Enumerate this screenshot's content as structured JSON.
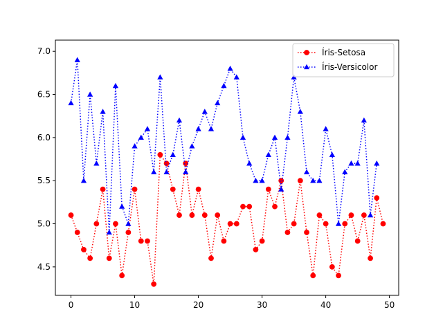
{
  "chart_data": {
    "type": "line",
    "title": "",
    "xlabel": "",
    "ylabel": "",
    "xlim": [
      -2.45,
      51.45
    ],
    "ylim": [
      4.17,
      7.13
    ],
    "xticks": [
      0,
      10,
      20,
      30,
      40,
      50
    ],
    "yticks": [
      4.5,
      5.0,
      5.5,
      6.0,
      6.5,
      7.0
    ],
    "xtick_labels": [
      "0",
      "10",
      "20",
      "30",
      "40",
      "50"
    ],
    "ytick_labels": [
      "4.5",
      "5.0",
      "5.5",
      "6.0",
      "6.5",
      "7.0"
    ],
    "grid": false,
    "legend_position": "upper right",
    "series": [
      {
        "name": "Íris-Setosa",
        "color": "#ff0000",
        "marker": "circle",
        "linestyle": "dotted",
        "x": [
          0,
          1,
          2,
          3,
          4,
          5,
          6,
          7,
          8,
          9,
          10,
          11,
          12,
          13,
          14,
          15,
          16,
          17,
          18,
          19,
          20,
          21,
          22,
          23,
          24,
          25,
          26,
          27,
          28,
          29,
          30,
          31,
          32,
          33,
          34,
          35,
          36,
          37,
          38,
          39,
          40,
          41,
          42,
          43,
          44,
          45,
          46,
          47,
          48,
          49
        ],
        "values": [
          5.1,
          4.9,
          4.7,
          4.6,
          5.0,
          5.4,
          4.6,
          5.0,
          4.4,
          4.9,
          5.4,
          4.8,
          4.8,
          4.3,
          5.8,
          5.7,
          5.4,
          5.1,
          5.7,
          5.1,
          5.4,
          5.1,
          4.6,
          5.1,
          4.8,
          5.0,
          5.0,
          5.2,
          5.2,
          4.7,
          4.8,
          5.4,
          5.2,
          5.5,
          4.9,
          5.0,
          5.5,
          4.9,
          4.4,
          5.1,
          5.0,
          4.5,
          4.4,
          5.0,
          5.1,
          4.8,
          5.1,
          4.6,
          5.3,
          5.0
        ]
      },
      {
        "name": "Íris-Versicolor",
        "color": "#0000ff",
        "marker": "triangle",
        "linestyle": "dotted",
        "x": [
          0,
          1,
          2,
          3,
          4,
          5,
          6,
          7,
          8,
          9,
          10,
          11,
          12,
          13,
          14,
          15,
          16,
          17,
          18,
          19,
          20,
          21,
          22,
          23,
          24,
          25,
          26,
          27,
          28,
          29,
          30,
          31,
          32,
          33,
          34,
          35,
          36,
          37,
          38,
          39,
          40,
          41,
          42,
          43,
          44,
          45,
          46,
          47,
          48
        ],
        "values": [
          6.4,
          6.9,
          5.5,
          6.5,
          5.7,
          6.3,
          4.9,
          6.6,
          5.2,
          5.0,
          5.9,
          6.0,
          6.1,
          5.6,
          6.7,
          5.6,
          5.8,
          6.2,
          5.6,
          5.9,
          6.1,
          6.3,
          6.1,
          6.4,
          6.6,
          6.8,
          6.7,
          6.0,
          5.7,
          5.5,
          5.5,
          5.8,
          6.0,
          5.4,
          6.0,
          6.7,
          6.3,
          5.6,
          5.5,
          5.5,
          6.1,
          5.8,
          5.0,
          5.6,
          5.7,
          5.7,
          6.2,
          5.1,
          5.7
        ]
      }
    ]
  }
}
